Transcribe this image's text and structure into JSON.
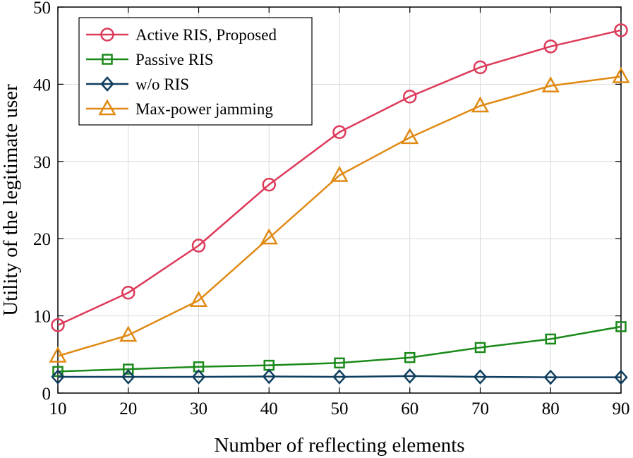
{
  "chart_data": {
    "type": "line",
    "title": "",
    "xlabel": "Number of reflecting elements",
    "ylabel": "Utility of the legitimate user",
    "xlim": [
      10,
      90
    ],
    "ylim": [
      0,
      50
    ],
    "xticks": [
      10,
      20,
      30,
      40,
      50,
      60,
      70,
      80,
      90
    ],
    "yticks": [
      0,
      10,
      20,
      30,
      40,
      50
    ],
    "grid": true,
    "legend_position": "top-left",
    "x": [
      10,
      20,
      30,
      40,
      50,
      60,
      70,
      80,
      90
    ],
    "series": [
      {
        "name": "Active RIS, Proposed",
        "color": "#dd3a5a",
        "marker": "circle",
        "values": [
          8.8,
          13.0,
          19.1,
          27.0,
          33.8,
          38.4,
          42.2,
          44.9,
          47.0
        ]
      },
      {
        "name": "Passive RIS",
        "color": "#1a8a1a",
        "marker": "square",
        "values": [
          2.8,
          3.1,
          3.4,
          3.6,
          3.9,
          4.6,
          5.9,
          7.0,
          8.6
        ]
      },
      {
        "name": "w/o RIS",
        "color": "#0f3e5e",
        "marker": "diamond",
        "values": [
          2.1,
          2.1,
          2.1,
          2.15,
          2.1,
          2.2,
          2.1,
          2.05,
          2.05
        ]
      },
      {
        "name": "Max-power jamming",
        "color": "#e08a14",
        "marker": "triangle",
        "values": [
          4.8,
          7.5,
          12.0,
          20.1,
          28.2,
          33.1,
          37.2,
          39.8,
          41.0
        ]
      }
    ]
  }
}
